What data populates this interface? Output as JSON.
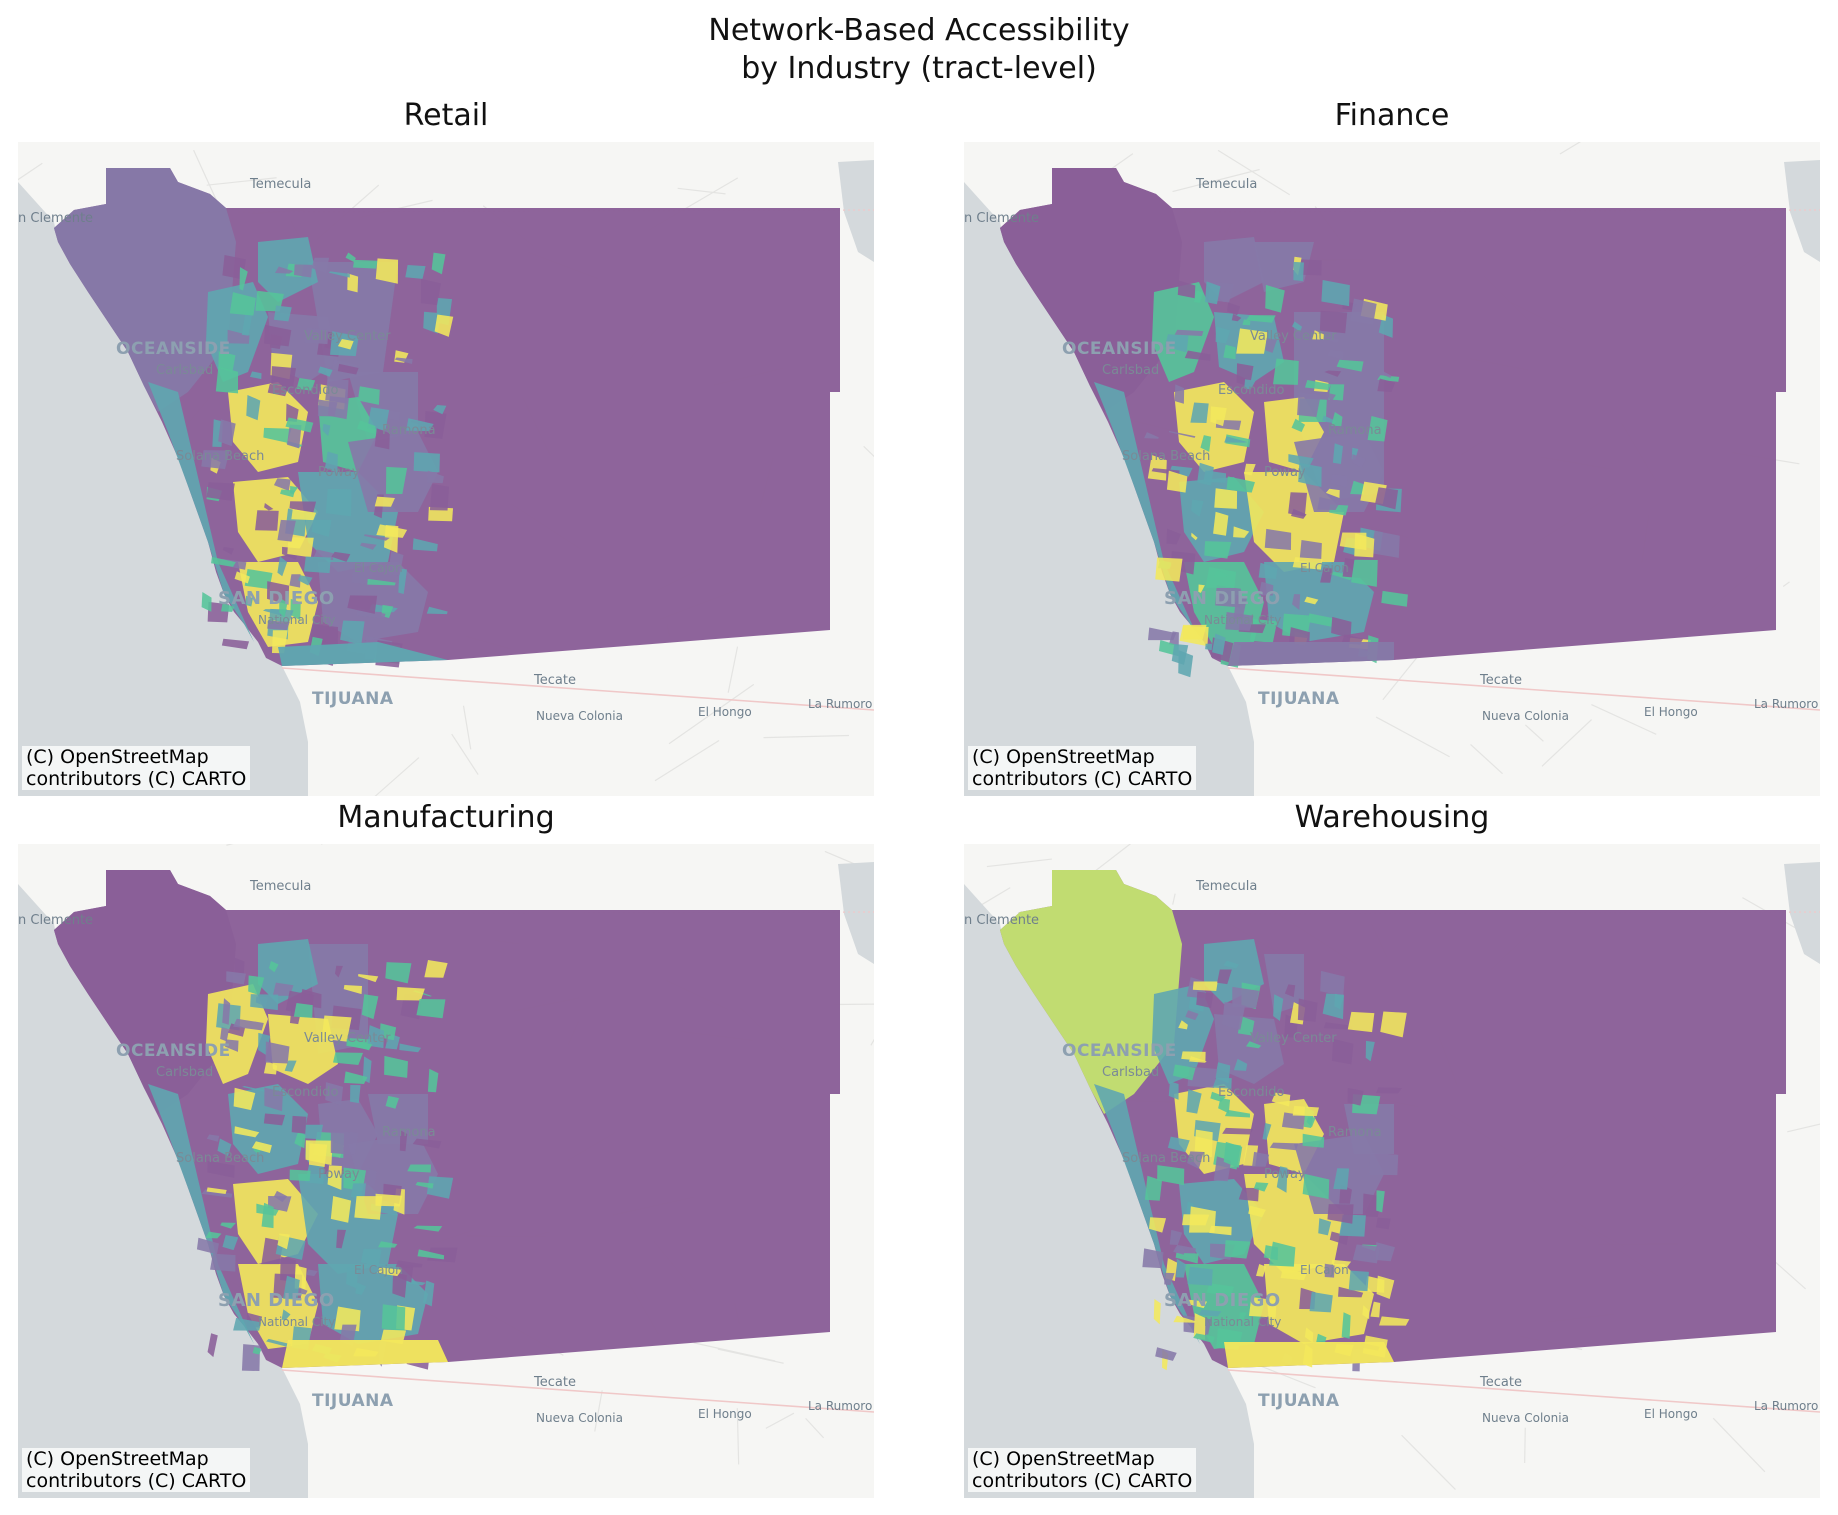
{
  "title_lines": [
    "Network-Based Accessibility",
    "by Industry (tract-level)"
  ],
  "attribution": [
    "(C) OpenStreetMap",
    "contributors (C) CARTO"
  ],
  "basemap_labels": {
    "temecula": "Temecula",
    "san_clemente": "n Clemente",
    "oceanside": "OCEANSIDE",
    "carlsbad": "Carlsbad",
    "valley_center": "Valley Center",
    "escondido": "Escondido",
    "ramona": "Ramona",
    "solana_beach": "Solana Beach",
    "poway": "Poway",
    "san_diego": "SAN DIEGO",
    "national_city": "National City",
    "el_cajon": "El Cajon",
    "tecate": "Tecate",
    "tijuana": "TIJUANA",
    "nueva_colonia": "Nueva Colonia",
    "el_hongo": "El Hongo",
    "la_rumorosa": "La Rumoro"
  },
  "colors": {
    "ocean": "#d4d9dc",
    "land": "#f6f6f4",
    "road": "#e4e4e2",
    "county_fill": "#8a5f98",
    "low": "#8a5f98",
    "mid_low": "#8679a8",
    "mid": "#5fa6b0",
    "mid_high": "#55c49a",
    "high": "#f3e85c",
    "north_high": "#c4e36f"
  },
  "panels": [
    {
      "title": "Retail",
      "north_tract_level": "mid_low"
    },
    {
      "title": "Finance",
      "north_tract_level": "low"
    },
    {
      "title": "Manufacturing",
      "north_tract_level": "low"
    },
    {
      "title": "Warehousing",
      "north_tract_level": "north_high"
    }
  ]
}
